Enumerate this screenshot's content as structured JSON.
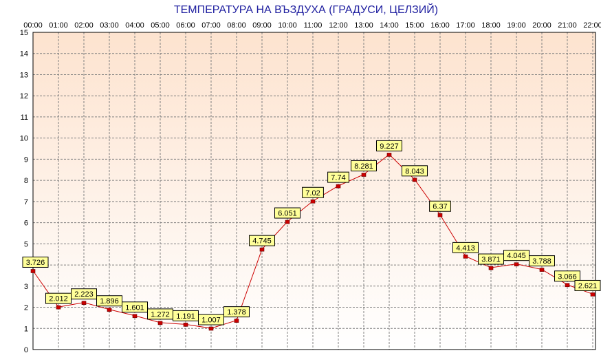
{
  "chart_data": {
    "type": "line",
    "title": "ТЕМПЕРАТУРА НА ВЪЗДУХА  (ГРАДУСИ, ЦЕЛЗИЙ)",
    "xlabel": "",
    "ylabel": "",
    "ylim": [
      0,
      15
    ],
    "yticks": [
      "0",
      "1",
      "2",
      "3",
      "4",
      "5",
      "6",
      "7",
      "8",
      "9",
      "10",
      "11",
      "12",
      "13",
      "14",
      "15"
    ],
    "xticks": [
      "00:00",
      "01:00",
      "02:00",
      "03:00",
      "04:00",
      "05:00",
      "06:00",
      "07:00",
      "08:00",
      "09:00",
      "10:00",
      "11:00",
      "12:00",
      "13:00",
      "14:00",
      "15:00",
      "16:00",
      "17:00",
      "18:00",
      "19:00",
      "20:00",
      "21:00",
      "22:00"
    ],
    "grid": true,
    "legend": "none",
    "series": [
      {
        "values": [
          3.726,
          2.012,
          2.223,
          1.896,
          1.601,
          1.272,
          1.191,
          1.007,
          1.378,
          4.745,
          6.051,
          7.02,
          7.74,
          8.281,
          9.227,
          8.043,
          6.37,
          4.413,
          3.871,
          4.045,
          3.788,
          3.066,
          2.621
        ],
        "labels": [
          "3.726",
          "2.012",
          "2.223",
          "1.896",
          "1.601",
          "1.272",
          "1.191",
          "1.007",
          "1.378",
          "4.745",
          "6.051",
          "7.02",
          "7.74",
          "8.281",
          "9.227",
          "8.043",
          "6.37",
          "4.413",
          "3.871",
          "4.045",
          "3.788",
          "3.066",
          "2.621"
        ],
        "color": "#cc0000"
      }
    ],
    "colors": {
      "title": "#2020a0",
      "line": "#cc0000",
      "marker": "#cc0000",
      "label_bg": "#ffff99",
      "plot_bg_top": "#fde3cf",
      "plot_bg_bottom": "#ffffff",
      "grid": "#808080"
    }
  }
}
